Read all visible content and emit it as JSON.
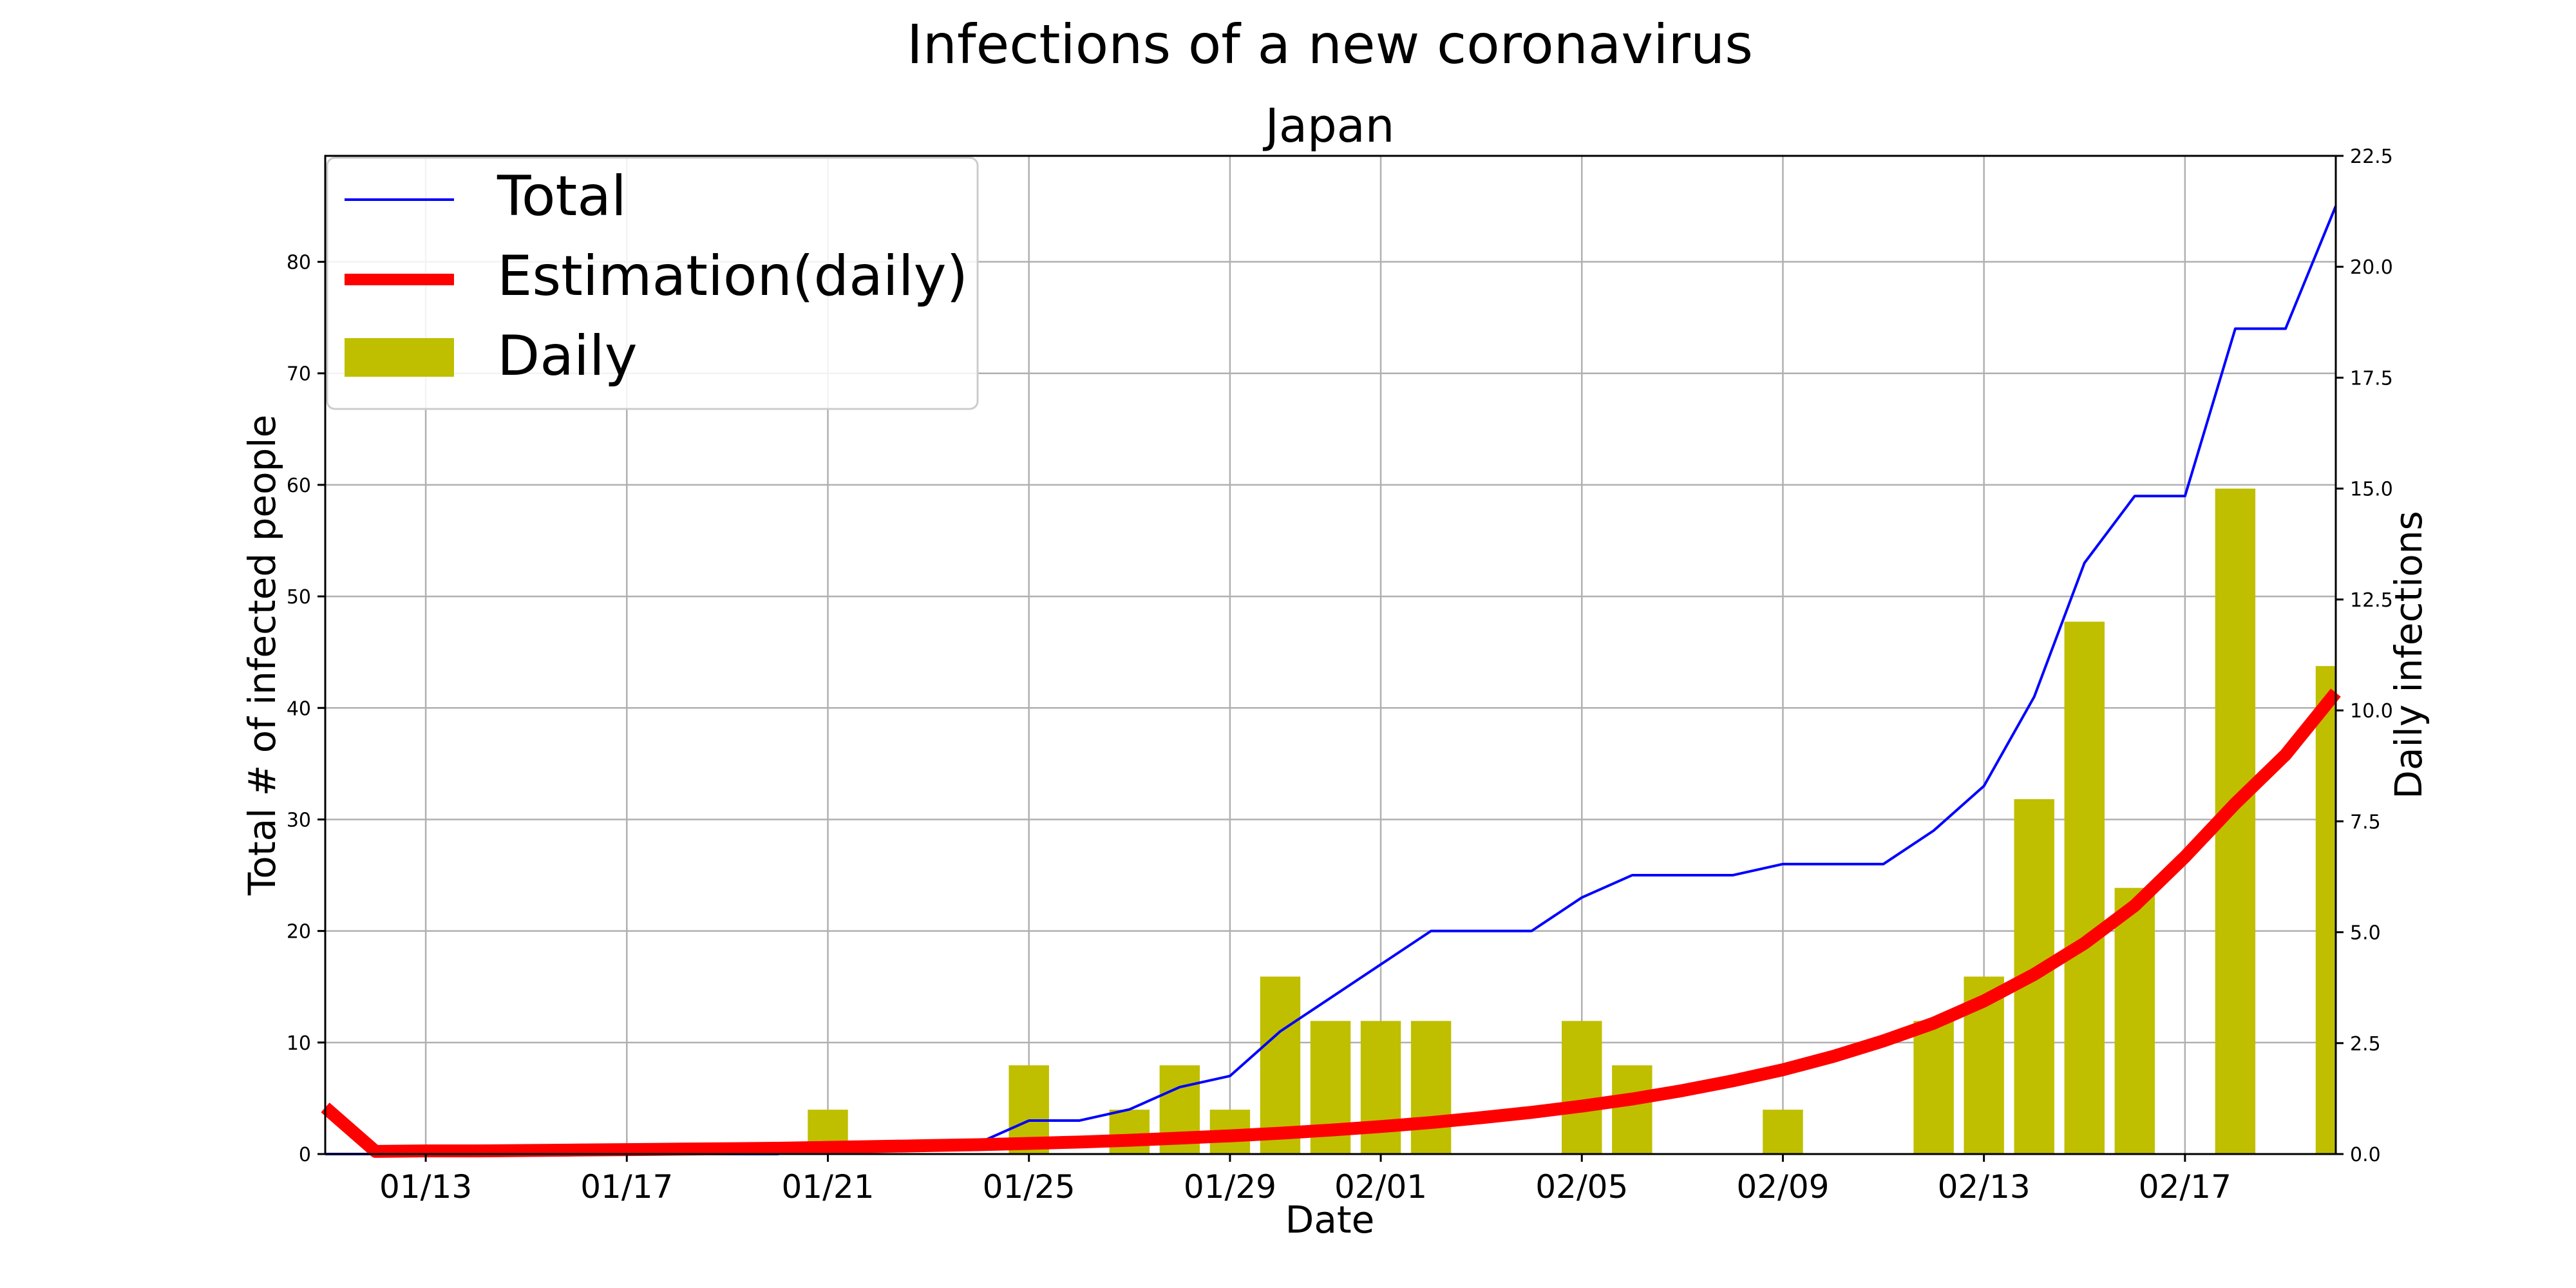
{
  "chart_data": {
    "type": "bar+line",
    "title": "Infections of a new coronavirus",
    "subtitle": "Japan",
    "xlabel": "Date",
    "ylabel_left": "Total # of infected people",
    "ylabel_right": "Daily infections",
    "x_ticks": [
      "01/13",
      "01/17",
      "01/21",
      "01/25",
      "01/29",
      "02/01",
      "02/05",
      "02/09",
      "02/13",
      "02/17"
    ],
    "x_tick_days": [
      2,
      6,
      10,
      14,
      18,
      21,
      25,
      29,
      33,
      37
    ],
    "x_range": [
      0,
      40
    ],
    "ylim_left": [
      0,
      89.5
    ],
    "ylim_right": [
      0,
      22.5
    ],
    "y_ticks_left": [
      "0",
      "10",
      "20",
      "30",
      "40",
      "50",
      "60",
      "70",
      "80"
    ],
    "y_ticks_right": [
      "0.0",
      "2.5",
      "5.0",
      "7.5",
      "10.0",
      "12.5",
      "15.0",
      "17.5",
      "20.0",
      "22.5"
    ],
    "grid": true,
    "legend": {
      "placement": "upper-left",
      "entries": [
        {
          "label": "Total",
          "style": "line",
          "color": "#0000ff"
        },
        {
          "label": "Estimation(daily)",
          "style": "thick-line",
          "color": "#ff0000"
        },
        {
          "label": "Daily",
          "style": "bar",
          "color": "#bfbf00"
        }
      ]
    },
    "series": [
      {
        "name": "Total",
        "axis": "left",
        "color": "#0000ff",
        "x": [
          0,
          1,
          2,
          3,
          4,
          5,
          6,
          7,
          8,
          9,
          10,
          11,
          12,
          13,
          14,
          15,
          16,
          17,
          18,
          19,
          20,
          21,
          22,
          23,
          24,
          25,
          26,
          27,
          28,
          29,
          30,
          31,
          32,
          33,
          34,
          35,
          36,
          37,
          38,
          39,
          40
        ],
        "values": [
          0,
          0,
          0,
          0,
          0,
          0,
          0,
          0,
          0,
          0,
          1,
          1,
          1,
          1,
          3,
          3,
          4,
          6,
          7,
          11,
          14,
          17,
          20,
          20,
          20,
          23,
          25,
          25,
          25,
          26,
          26,
          26,
          29,
          33,
          41,
          53,
          59,
          59,
          74,
          74,
          85
        ]
      },
      {
        "name": "Estimation(daily)",
        "axis": "right",
        "color": "#ff0000",
        "x": [
          0,
          1,
          2,
          3,
          4,
          5,
          6,
          7,
          8,
          9,
          10,
          11,
          12,
          13,
          14,
          15,
          16,
          17,
          18,
          19,
          20,
          21,
          22,
          23,
          24,
          25,
          26,
          27,
          28,
          29,
          30,
          31,
          32,
          33,
          34,
          35,
          36,
          37,
          38,
          39,
          40
        ],
        "values": [
          1.05,
          0.06,
          0.07,
          0.07,
          0.08,
          0.09,
          0.1,
          0.11,
          0.12,
          0.13,
          0.15,
          0.17,
          0.19,
          0.21,
          0.24,
          0.27,
          0.31,
          0.36,
          0.41,
          0.47,
          0.54,
          0.62,
          0.71,
          0.82,
          0.94,
          1.08,
          1.24,
          1.43,
          1.65,
          1.9,
          2.2,
          2.55,
          2.95,
          3.45,
          4.05,
          4.75,
          5.6,
          6.7,
          7.9,
          9.0,
          10.4
        ]
      },
      {
        "name": "Daily",
        "axis": "right",
        "color": "#bfbf00",
        "type": "bar",
        "x": [
          10,
          14,
          16,
          17,
          18,
          19,
          20,
          21,
          22,
          25,
          26,
          29,
          32,
          33,
          34,
          35,
          36,
          38,
          40
        ],
        "values": [
          1,
          2,
          1,
          2,
          1,
          4,
          3,
          3,
          3,
          3,
          2,
          1,
          3,
          4,
          8,
          12,
          6,
          15,
          11
        ]
      }
    ]
  }
}
